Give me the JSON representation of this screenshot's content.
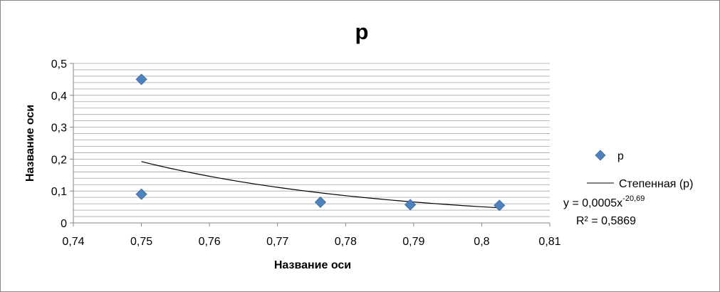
{
  "chart_data": {
    "type": "scatter",
    "title": "p",
    "xlabel": "Название оси",
    "ylabel": "Название оси",
    "xlim": [
      0.74,
      0.81
    ],
    "ylim": [
      0,
      0.5
    ],
    "x_ticks": [
      "0,74",
      "0,75",
      "0,76",
      "0,77",
      "0,78",
      "0,79",
      "0,8",
      "0,81"
    ],
    "x_tick_values": [
      0.74,
      0.75,
      0.76,
      0.77,
      0.78,
      0.79,
      0.8,
      0.81
    ],
    "y_ticks": [
      "0",
      "0,1",
      "0,2",
      "0,3",
      "0,4",
      "0,5"
    ],
    "y_tick_values": [
      0,
      0.1,
      0.2,
      0.3,
      0.4,
      0.5
    ],
    "y_minor_gridline_step": 0.02,
    "grid": true,
    "legend_position": "right",
    "series": [
      {
        "name": "p",
        "marker": "diamond",
        "color": "#4F81BD",
        "points": [
          {
            "x": 0.75,
            "y": 0.45
          },
          {
            "x": 0.75,
            "y": 0.09
          },
          {
            "x": 0.7763,
            "y": 0.065
          },
          {
            "x": 0.7895,
            "y": 0.057
          },
          {
            "x": 0.8026,
            "y": 0.055
          }
        ]
      }
    ],
    "trendline": {
      "name": "Степенная (p)",
      "type": "power",
      "color": "#000000",
      "coefficient": 0.0005,
      "exponent": -20.69,
      "x_range": [
        0.75,
        0.8026
      ],
      "equation_prefix": "y = 0,0005x",
      "equation_exponent": "-20,69",
      "r_squared_label": "R² = 0,5869"
    }
  }
}
